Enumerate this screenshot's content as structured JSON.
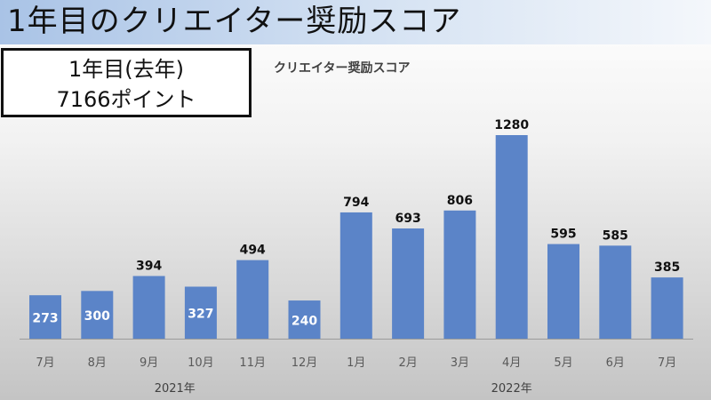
{
  "header": {
    "title": "1年目のクリエイター奨励スコア"
  },
  "summary": {
    "line1": "1年目(去年)",
    "line2": "7166ポイント"
  },
  "chart_data": {
    "type": "bar",
    "title": "クリエイター奨励スコア",
    "categories": [
      "7月",
      "8月",
      "9月",
      "10月",
      "11月",
      "12月",
      "1月",
      "2月",
      "3月",
      "4月",
      "5月",
      "6月",
      "7月"
    ],
    "values": [
      273,
      300,
      394,
      327,
      494,
      240,
      794,
      693,
      806,
      1280,
      595,
      585,
      385
    ],
    "year_groups": [
      {
        "label": "2021年",
        "start": 0,
        "end": 5
      },
      {
        "label": "2022年",
        "start": 6,
        "end": 12
      }
    ],
    "data_labels": [
      "273",
      "300",
      "394",
      "327",
      "494",
      "240",
      "794",
      "693",
      "806",
      "1280",
      "595",
      "585",
      "385"
    ],
    "ylim": [
      0,
      1400
    ],
    "grid": false,
    "bar_color": "#5b84c8"
  }
}
